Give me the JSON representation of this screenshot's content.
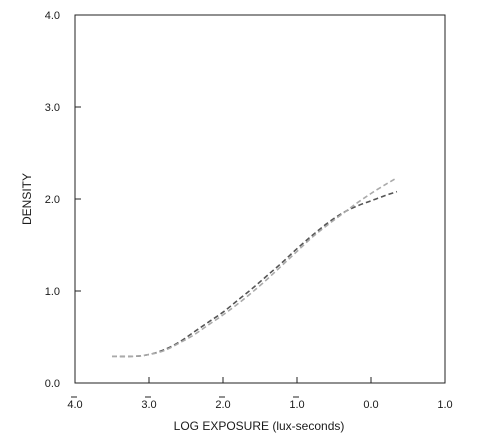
{
  "chart_data": {
    "type": "line",
    "xlabel": "LOG EXPOSURE (lux-seconds)",
    "ylabel": "DENSITY",
    "xlim": [
      -4.0,
      1.0
    ],
    "ylim": [
      0.0,
      4.0
    ],
    "x_ticks": [
      {
        "value": -4.0,
        "label": "4.0",
        "bar": true
      },
      {
        "value": -3.0,
        "label": "3.0",
        "bar": true
      },
      {
        "value": -2.0,
        "label": "2.0",
        "bar": true
      },
      {
        "value": -1.0,
        "label": "1.0",
        "bar": true
      },
      {
        "value": 0.0,
        "label": "0.0",
        "bar": false
      },
      {
        "value": 1.0,
        "label": "1.0",
        "bar": false
      }
    ],
    "y_ticks": [
      {
        "value": 0.0,
        "label": "0.0"
      },
      {
        "value": 1.0,
        "label": "1.0"
      },
      {
        "value": 2.0,
        "label": "2.0"
      },
      {
        "value": 3.0,
        "label": "3.0"
      },
      {
        "value": 4.0,
        "label": "4.0"
      }
    ],
    "grid": false,
    "series": [
      {
        "color": "#555555",
        "style": "dashed",
        "x": [
          -3.5,
          -3.2,
          -3.0,
          -2.8,
          -2.6,
          -2.4,
          -2.2,
          -2.0,
          -1.8,
          -1.6,
          -1.4,
          -1.2,
          -1.0,
          -0.8,
          -0.6,
          -0.4,
          -0.2,
          0.0,
          0.2,
          0.35
        ],
        "y": [
          0.29,
          0.29,
          0.31,
          0.36,
          0.44,
          0.55,
          0.66,
          0.77,
          0.9,
          1.03,
          1.17,
          1.31,
          1.46,
          1.6,
          1.73,
          1.84,
          1.92,
          1.98,
          2.04,
          2.08
        ]
      },
      {
        "color": "#aaaaaa",
        "style": "dashed",
        "x": [
          -3.5,
          -3.2,
          -3.0,
          -2.8,
          -2.6,
          -2.4,
          -2.2,
          -2.0,
          -1.8,
          -1.6,
          -1.4,
          -1.2,
          -1.0,
          -0.8,
          -0.6,
          -0.4,
          -0.2,
          0.0,
          0.2,
          0.35
        ],
        "y": [
          0.29,
          0.29,
          0.31,
          0.35,
          0.43,
          0.52,
          0.63,
          0.74,
          0.86,
          0.99,
          1.13,
          1.28,
          1.43,
          1.58,
          1.71,
          1.83,
          1.95,
          2.06,
          2.16,
          2.23
        ]
      }
    ]
  }
}
